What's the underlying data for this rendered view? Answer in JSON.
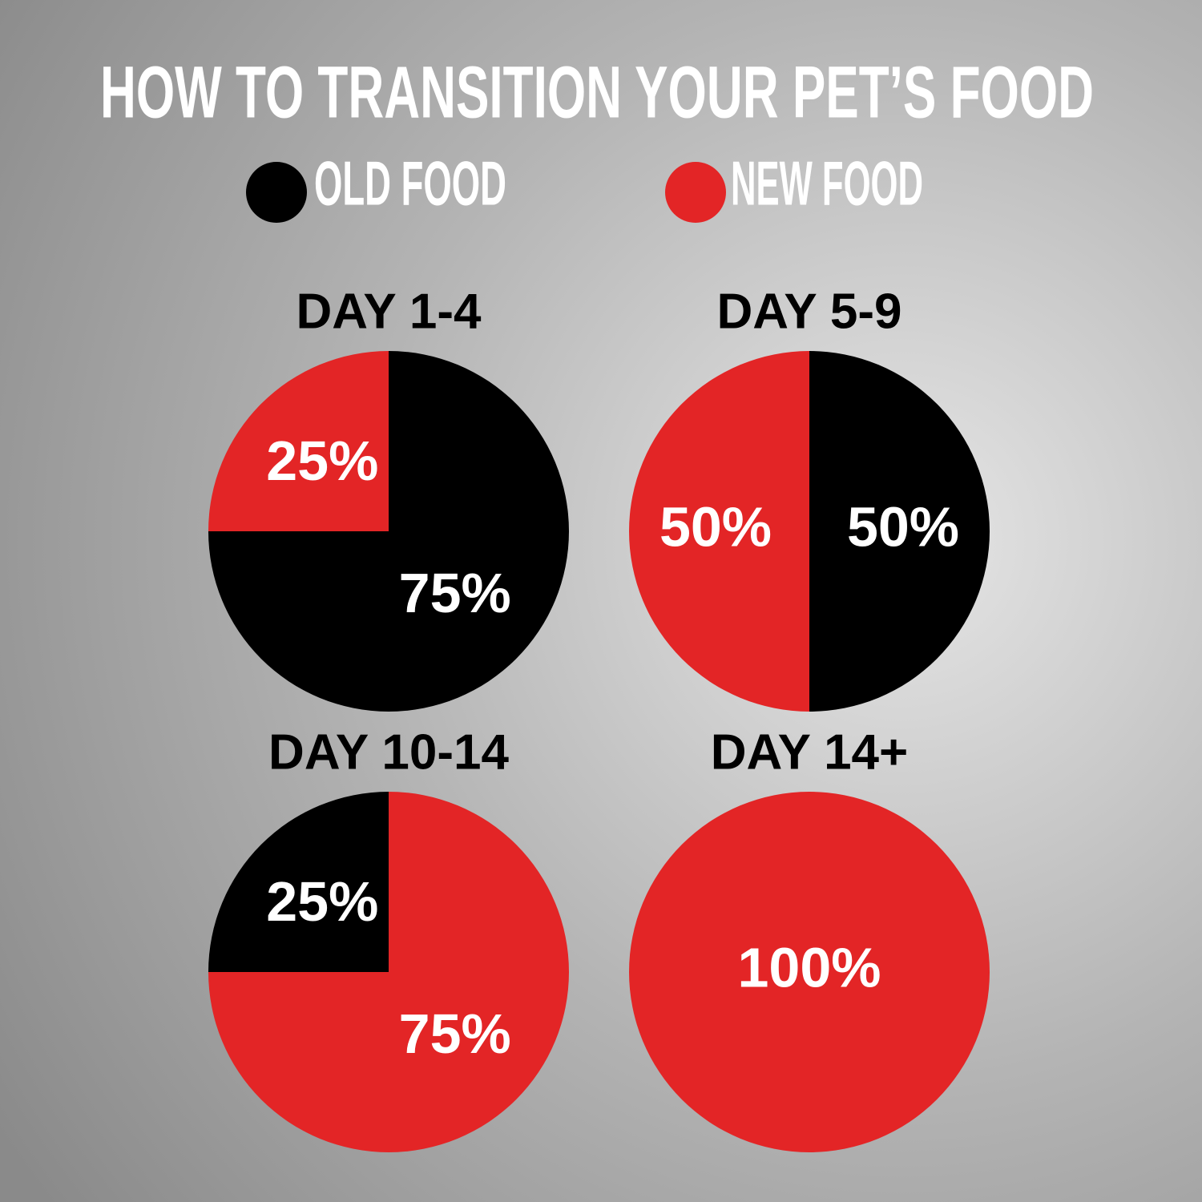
{
  "title": "HOW TO TRANSITION YOUR PET’S FOOD",
  "legend": [
    {
      "name": "OLD FOOD",
      "color": "#000000"
    },
    {
      "name": "NEW FOOD",
      "color": "#e32526"
    }
  ],
  "chart_data": [
    {
      "type": "pie",
      "title": "DAY 1-4",
      "values": [
        75,
        25
      ],
      "value_labels": [
        "75%",
        "25%"
      ],
      "start_angle": 0
    },
    {
      "type": "pie",
      "title": "DAY 5-9",
      "values": [
        50,
        50
      ],
      "value_labels": [
        "50%",
        "50%"
      ],
      "start_angle": 0
    },
    {
      "type": "pie",
      "title": "DAY 10-14",
      "values": [
        25,
        75
      ],
      "value_labels": [
        "25%",
        "75%"
      ],
      "start_angle": 270
    },
    {
      "type": "pie",
      "title": "DAY 14+",
      "values": [
        0,
        100
      ],
      "value_labels": [
        null,
        "100%"
      ],
      "start_angle": 0
    }
  ]
}
